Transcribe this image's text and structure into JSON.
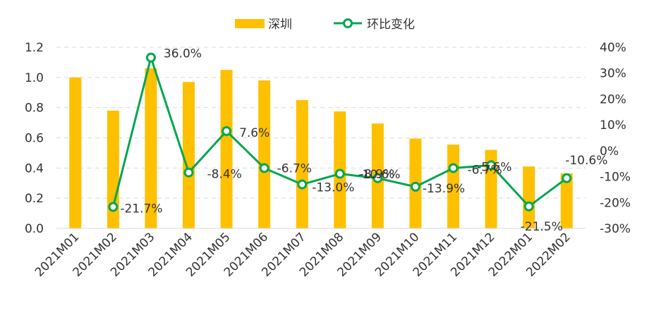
{
  "chart_data": {
    "type": "bar+line",
    "categories": [
      "2021M01",
      "2021M02",
      "2021M03",
      "2021M04",
      "2021M05",
      "2021M06",
      "2021M07",
      "2021M08",
      "2021M09",
      "2021M10",
      "2021M11",
      "2021M12",
      "2022M01",
      "2022M02"
    ],
    "series": [
      {
        "name": "深圳",
        "type": "bar",
        "axis": "left",
        "color": "#FFC000",
        "values": [
          1.0,
          0.78,
          1.06,
          0.97,
          1.05,
          0.98,
          0.85,
          0.775,
          0.695,
          0.595,
          0.555,
          0.52,
          0.41,
          0.365
        ]
      },
      {
        "name": "环比变化",
        "type": "line",
        "axis": "right",
        "color": "#00A651",
        "values": [
          null,
          -21.7,
          36.0,
          -8.4,
          7.6,
          -6.7,
          -13.0,
          -8.9,
          -10.6,
          -13.9,
          -6.7,
          -5.6,
          -21.5,
          -10.6
        ],
        "labels": [
          "",
          "-21.7%",
          "36.0%",
          "-8.4%",
          "7.6%",
          "-6.7%",
          "-13.0%",
          "-8.9%",
          "-10.6%",
          "-13.9%",
          "-6.7%",
          "-5.6%",
          "-21.5%",
          "-10.6%"
        ]
      }
    ],
    "y_left": {
      "ylim": [
        0,
        1.2
      ],
      "ticks": [
        "0.0",
        "0.2",
        "0.4",
        "0.6",
        "0.8",
        "1.0",
        "1.2"
      ]
    },
    "y_right": {
      "ylim": [
        -30,
        40
      ],
      "ticks": [
        "-30%",
        "-20%",
        "-10%",
        "0%",
        "10%",
        "20%",
        "30%",
        "40%"
      ]
    },
    "grid": true,
    "legend_position": "top-center",
    "title": "",
    "xlabel": "",
    "ylabel": ""
  }
}
